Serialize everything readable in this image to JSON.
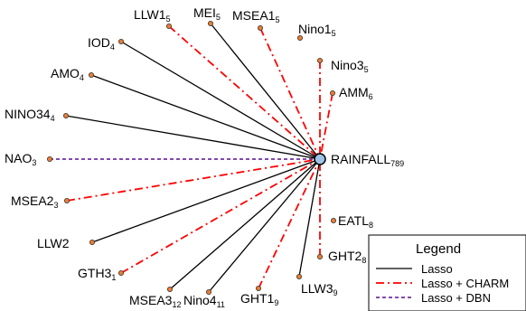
{
  "center": {
    "name": "RAINFALL",
    "sub": "789"
  },
  "edge_styles": {
    "lasso": {
      "color": "#000000",
      "dash": ""
    },
    "lasso_charm": {
      "color": "#ff0000",
      "dash": "9,4,2,4"
    },
    "lasso_dbn": {
      "color": "#7030a0",
      "dash": "4,3"
    }
  },
  "node_color": "#ed7d31",
  "center_color": "#9dc3e6",
  "nodes": [
    {
      "id": "llw1",
      "name": "LLW1",
      "sub": "5",
      "edge": "lasso_charm"
    },
    {
      "id": "mei",
      "name": "MEI",
      "sub": "5",
      "edge": "lasso"
    },
    {
      "id": "msea1",
      "name": "MSEA1",
      "sub": "5",
      "edge": "lasso_charm"
    },
    {
      "id": "nino1",
      "name": "Nino1",
      "sub": "5",
      "edge": "none"
    },
    {
      "id": "iod",
      "name": "IOD",
      "sub": "4",
      "edge": "lasso"
    },
    {
      "id": "nino3",
      "name": "Nino3",
      "sub": "5",
      "edge": "lasso_charm"
    },
    {
      "id": "amo",
      "name": "AMO",
      "sub": "4",
      "edge": "lasso"
    },
    {
      "id": "amm",
      "name": "AMM",
      "sub": "6",
      "edge": "lasso_charm"
    },
    {
      "id": "nino34",
      "name": "NINO34",
      "sub": "4",
      "edge": "lasso"
    },
    {
      "id": "nao",
      "name": "NAO",
      "sub": "3",
      "edge": "lasso_dbn"
    },
    {
      "id": "msea2",
      "name": "MSEA2",
      "sub": "3",
      "edge": "lasso_charm"
    },
    {
      "id": "eatl",
      "name": "EATL",
      "sub": "8",
      "edge": "none"
    },
    {
      "id": "llw2",
      "name": "LLW2",
      "sub": "",
      "edge": "lasso"
    },
    {
      "id": "ght2",
      "name": "GHT2",
      "sub": "8",
      "edge": "lasso_charm"
    },
    {
      "id": "gth3",
      "name": "GTH3",
      "sub": "1",
      "edge": "lasso_charm"
    },
    {
      "id": "msea3",
      "name": "MSEA3",
      "sub": "12",
      "edge": "lasso"
    },
    {
      "id": "nino4",
      "name": "Nino4",
      "sub": "11",
      "edge": "lasso"
    },
    {
      "id": "ght1",
      "name": "GHT1",
      "sub": "9",
      "edge": "lasso_charm"
    },
    {
      "id": "llw3",
      "name": "LLW3",
      "sub": "9",
      "edge": "lasso"
    }
  ],
  "legend": {
    "title": "Legend",
    "items": [
      {
        "label": "Lasso",
        "style": "lasso"
      },
      {
        "label": "Lasso + CHARM",
        "style": "lasso_charm"
      },
      {
        "label": "Lasso + DBN",
        "style": "lasso_dbn"
      }
    ]
  }
}
